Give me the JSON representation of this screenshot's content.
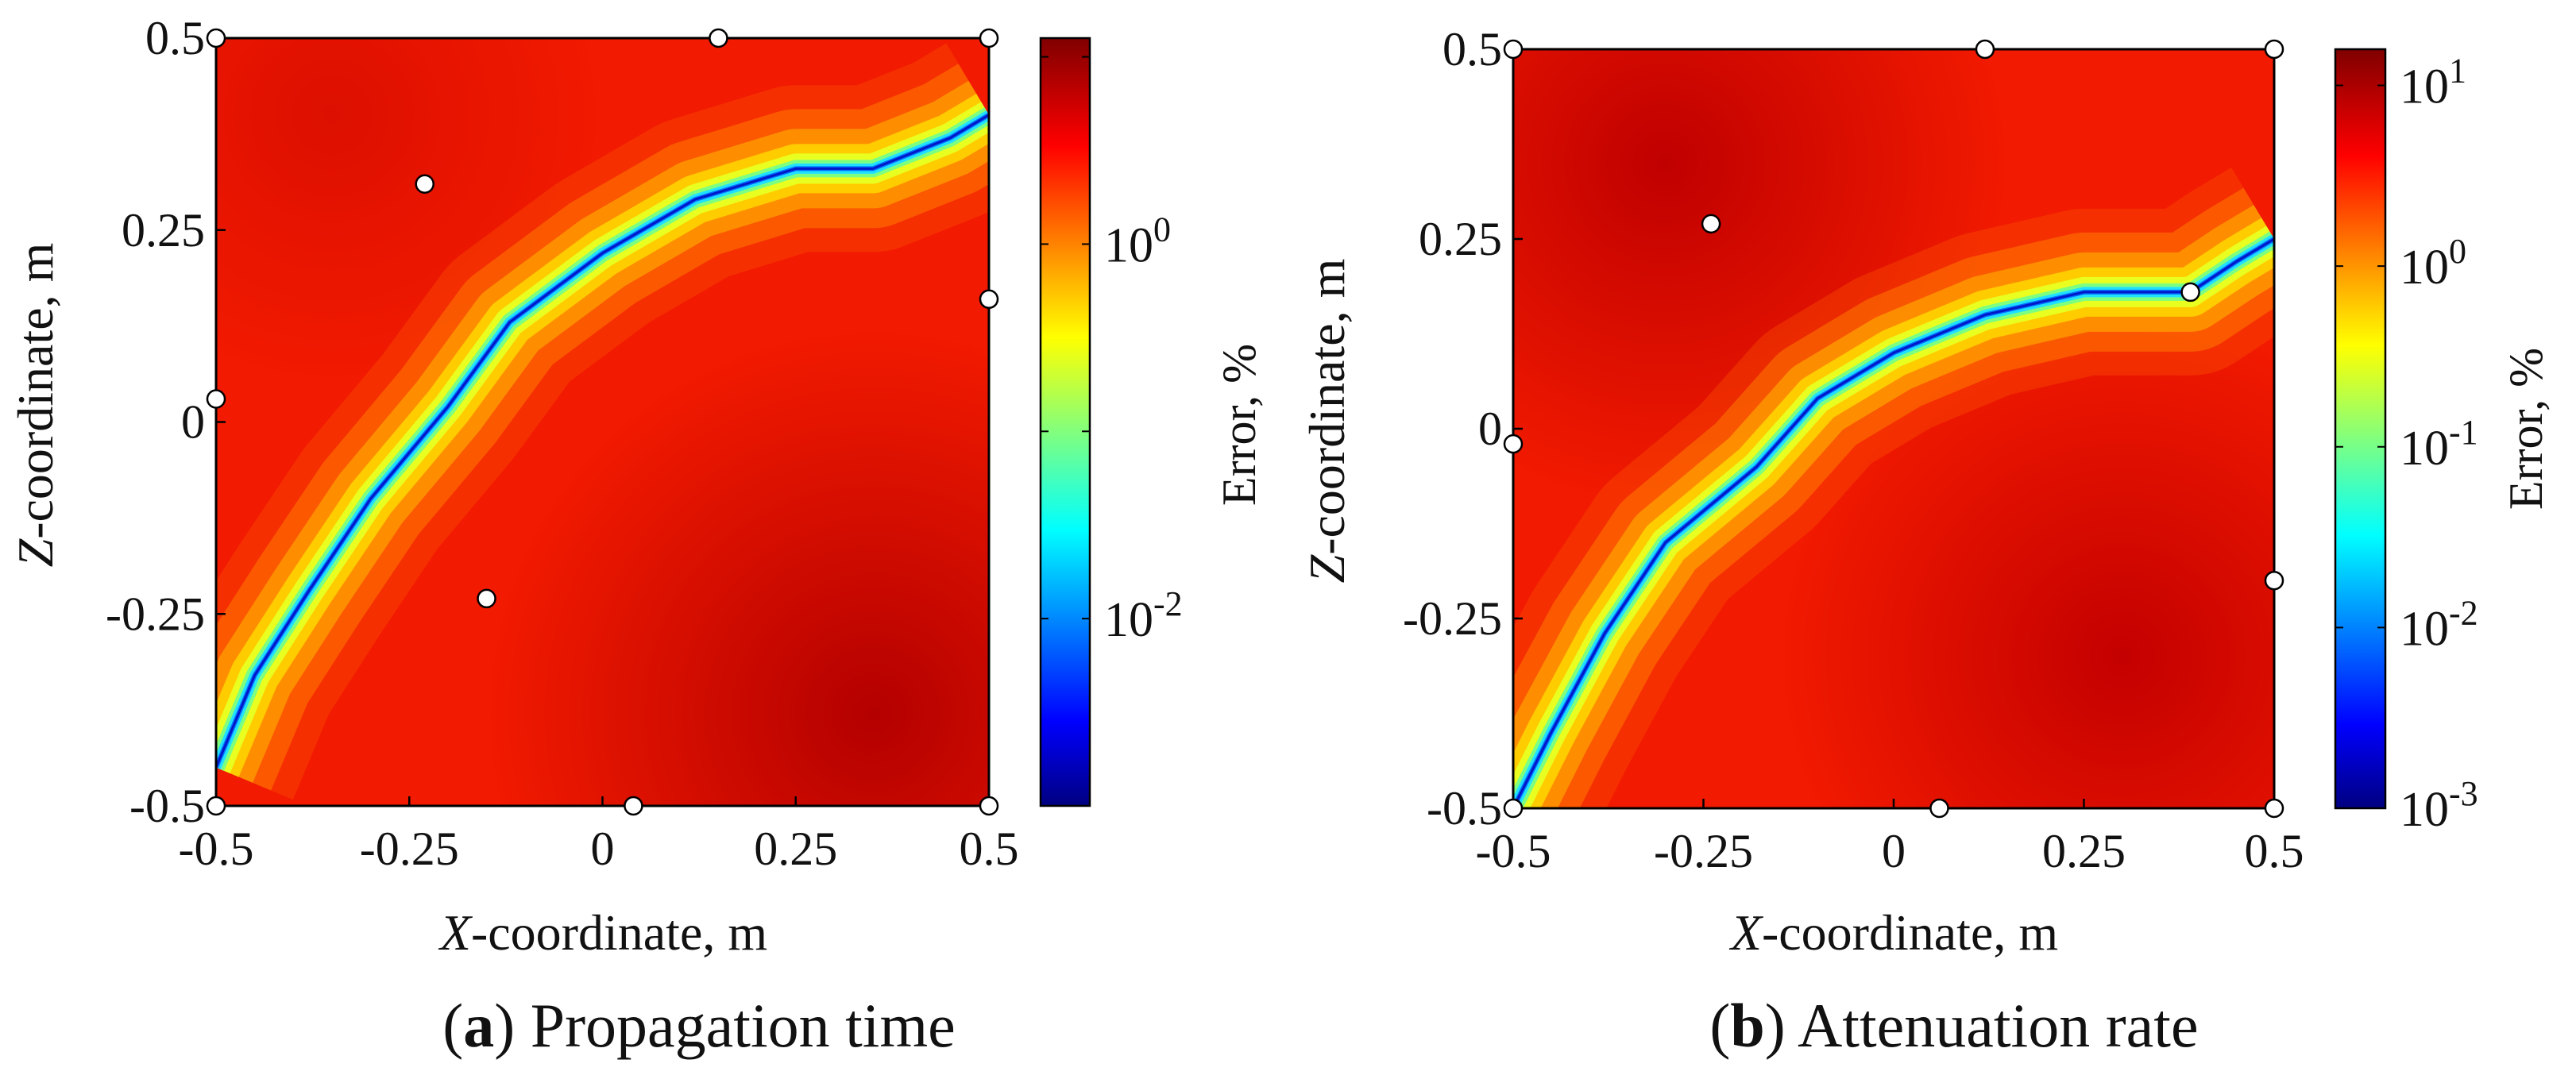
{
  "figure": {
    "colorbar_label": "Error, %",
    "colorbar_ticks_decades": [
      -3,
      -2,
      -1,
      0,
      1
    ]
  },
  "chart_data": [
    {
      "type": "heatmap",
      "panel": "(a)",
      "panel_letter": "a",
      "caption": "Propagation time",
      "xlabel_var": "X",
      "xlabel_rest": "-coordinate, m",
      "ylabel_var": "Z",
      "ylabel_rest": "-coordinate, m",
      "xlim": [
        -0.5,
        0.5
      ],
      "ylim": [
        -0.5,
        0.5
      ],
      "xticks": [
        "-0.5",
        "-0.25",
        "0",
        "0.25",
        "0.5"
      ],
      "yticks": [
        "-0.5",
        "-0.25",
        "0",
        "0.25",
        "0.5"
      ],
      "colorbar": {
        "scale": "log",
        "range_decades": [
          -3,
          1.1
        ],
        "labeled_decades": [
          0,
          -2
        ]
      },
      "zero_error_curve": [
        [
          -0.5,
          -0.45
        ],
        [
          -0.45,
          -0.33
        ],
        [
          -0.38,
          -0.22
        ],
        [
          -0.3,
          -0.1
        ],
        [
          -0.2,
          0.02
        ],
        [
          -0.12,
          0.13
        ],
        [
          0,
          0.22
        ],
        [
          0.12,
          0.29
        ],
        [
          0.25,
          0.33
        ],
        [
          0.35,
          0.33
        ],
        [
          0.45,
          0.37
        ],
        [
          0.5,
          0.4
        ]
      ],
      "sensors": [
        [
          -0.5,
          0.5
        ],
        [
          0.15,
          0.5
        ],
        [
          0.5,
          0.5
        ],
        [
          -0.23,
          0.31
        ],
        [
          0.5,
          0.16
        ],
        [
          -0.5,
          0.03
        ],
        [
          -0.15,
          -0.23
        ],
        [
          -0.5,
          -0.5
        ],
        [
          0.04,
          -0.5
        ],
        [
          0.5,
          -0.5
        ]
      ]
    },
    {
      "type": "heatmap",
      "panel": "(b)",
      "panel_letter": "b",
      "caption": "Attenuation rate",
      "xlabel_var": "X",
      "xlabel_rest": "-coordinate, m",
      "ylabel_var": "Z",
      "ylabel_rest": "-coordinate, m",
      "xlim": [
        -0.5,
        0.5
      ],
      "ylim": [
        -0.5,
        0.5
      ],
      "xticks": [
        "-0.5",
        "-0.25",
        "0",
        "0.25",
        "0.5"
      ],
      "yticks": [
        "-0.5",
        "-0.25",
        "0",
        "0.25",
        "0.5"
      ],
      "colorbar": {
        "scale": "log",
        "range_decades": [
          -3,
          1.2
        ],
        "labeled_decades": [
          1,
          0,
          -1,
          -2,
          -3
        ]
      },
      "zero_error_curve": [
        [
          -0.5,
          -0.5
        ],
        [
          -0.45,
          -0.4
        ],
        [
          -0.38,
          -0.27
        ],
        [
          -0.3,
          -0.15
        ],
        [
          -0.18,
          -0.05
        ],
        [
          -0.1,
          0.04
        ],
        [
          0,
          0.1
        ],
        [
          0.12,
          0.15
        ],
        [
          0.25,
          0.18
        ],
        [
          0.35,
          0.18
        ],
        [
          0.39,
          0.18
        ],
        [
          0.45,
          0.22
        ],
        [
          0.5,
          0.25
        ]
      ],
      "sensors": [
        [
          -0.5,
          0.5
        ],
        [
          0.12,
          0.5
        ],
        [
          0.5,
          0.5
        ],
        [
          -0.24,
          0.27
        ],
        [
          0.39,
          0.18
        ],
        [
          -0.5,
          -0.02
        ],
        [
          0.5,
          -0.2
        ],
        [
          -0.5,
          -0.5
        ],
        [
          0.06,
          -0.5
        ],
        [
          0.5,
          -0.5
        ]
      ]
    }
  ]
}
